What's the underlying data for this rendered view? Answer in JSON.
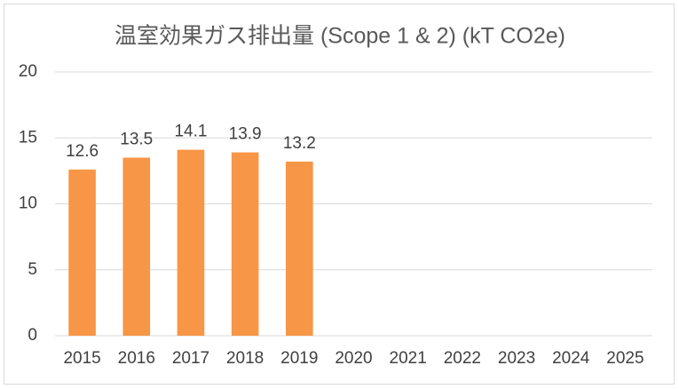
{
  "chart_data": {
    "type": "bar",
    "title": "温室効果ガス排出量 (Scope 1 & 2) (kT CO2e)",
    "categories": [
      "2015",
      "2016",
      "2017",
      "2018",
      "2019",
      "2020",
      "2021",
      "2022",
      "2023",
      "2024",
      "2025"
    ],
    "values": [
      12.6,
      13.5,
      14.1,
      13.9,
      13.2,
      null,
      null,
      null,
      null,
      null,
      null
    ],
    "color": "#f79646",
    "ylim": [
      0,
      20
    ],
    "yticks": [
      0,
      5,
      10,
      15,
      20
    ],
    "grid": true,
    "data_labels": true
  }
}
